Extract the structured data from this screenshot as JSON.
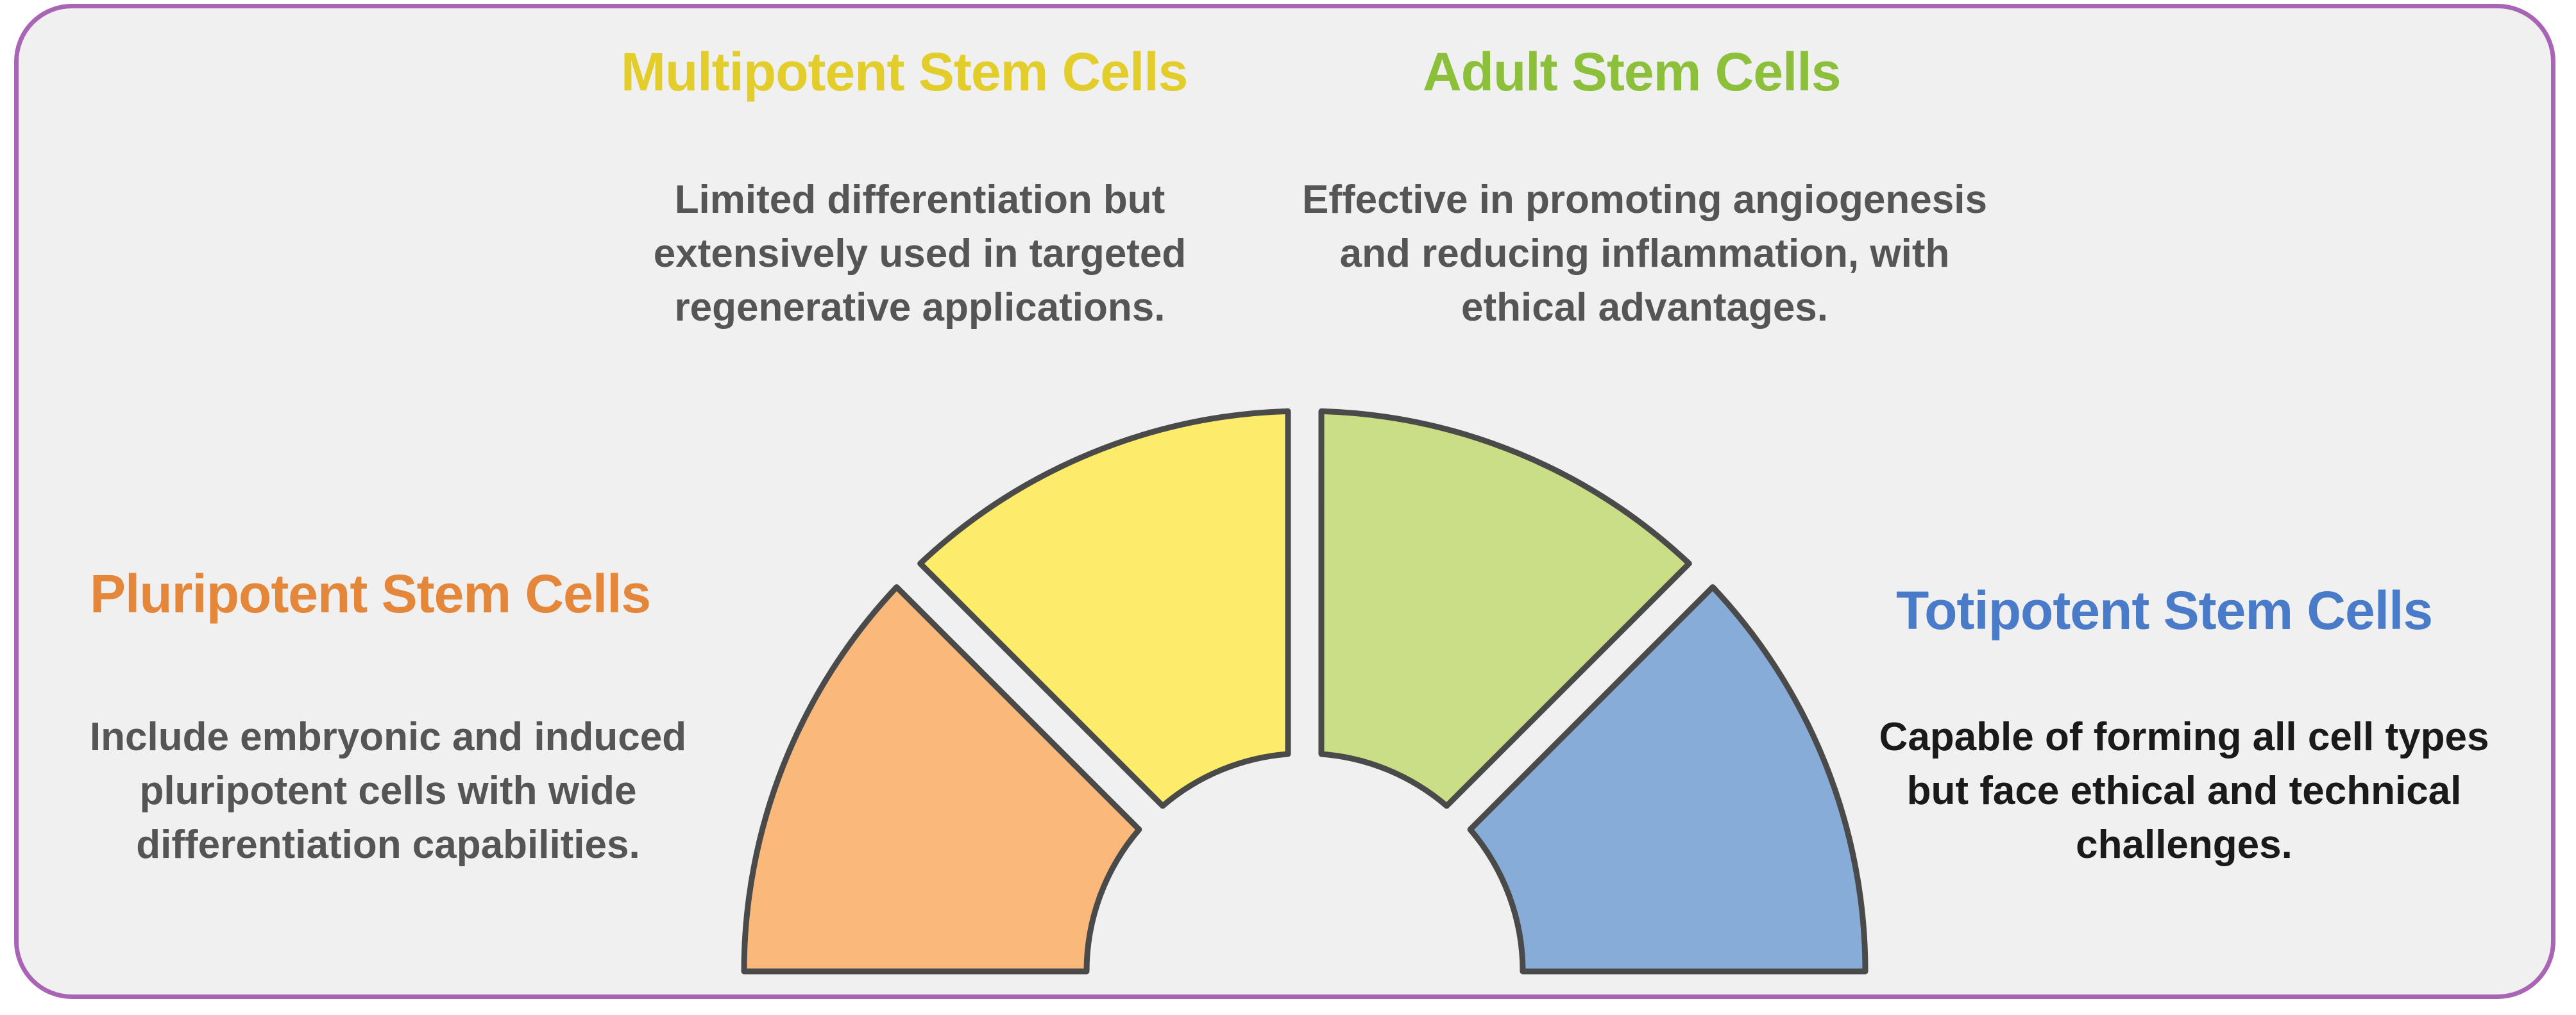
{
  "colors": {
    "frame_border": "#a964b6",
    "background": "#f0f0f0",
    "outline": "#4a4a4a"
  },
  "segments": [
    {
      "key": "pluripotent",
      "title": "Pluripotent Stem Cells",
      "title_color": "#e5873a",
      "fill": "#fab97b",
      "description": [
        "Include embryonic and induced",
        "pluripotent cells with wide",
        "differentiation capabilities."
      ]
    },
    {
      "key": "multipotent",
      "title": "Multipotent Stem Cells",
      "title_color": "#e3cd2a",
      "fill": "#fcec6a",
      "description": [
        "Limited differentiation but",
        "extensively used in targeted",
        "regenerative applications."
      ]
    },
    {
      "key": "adult",
      "title": "Adult Stem Cells",
      "title_color": "#8cbf3a",
      "fill": "#cade85",
      "description": [
        "Effective in promoting angiogenesis",
        "and reducing inflammation, with",
        "ethical advantages."
      ]
    },
    {
      "key": "totipotent",
      "title": "Totipotent Stem Cells",
      "title_color": "#4a7bc8",
      "fill": "#88acd8",
      "description": [
        "Capable of forming all cell types",
        "but face ethical and technical",
        "challenges."
      ]
    }
  ]
}
